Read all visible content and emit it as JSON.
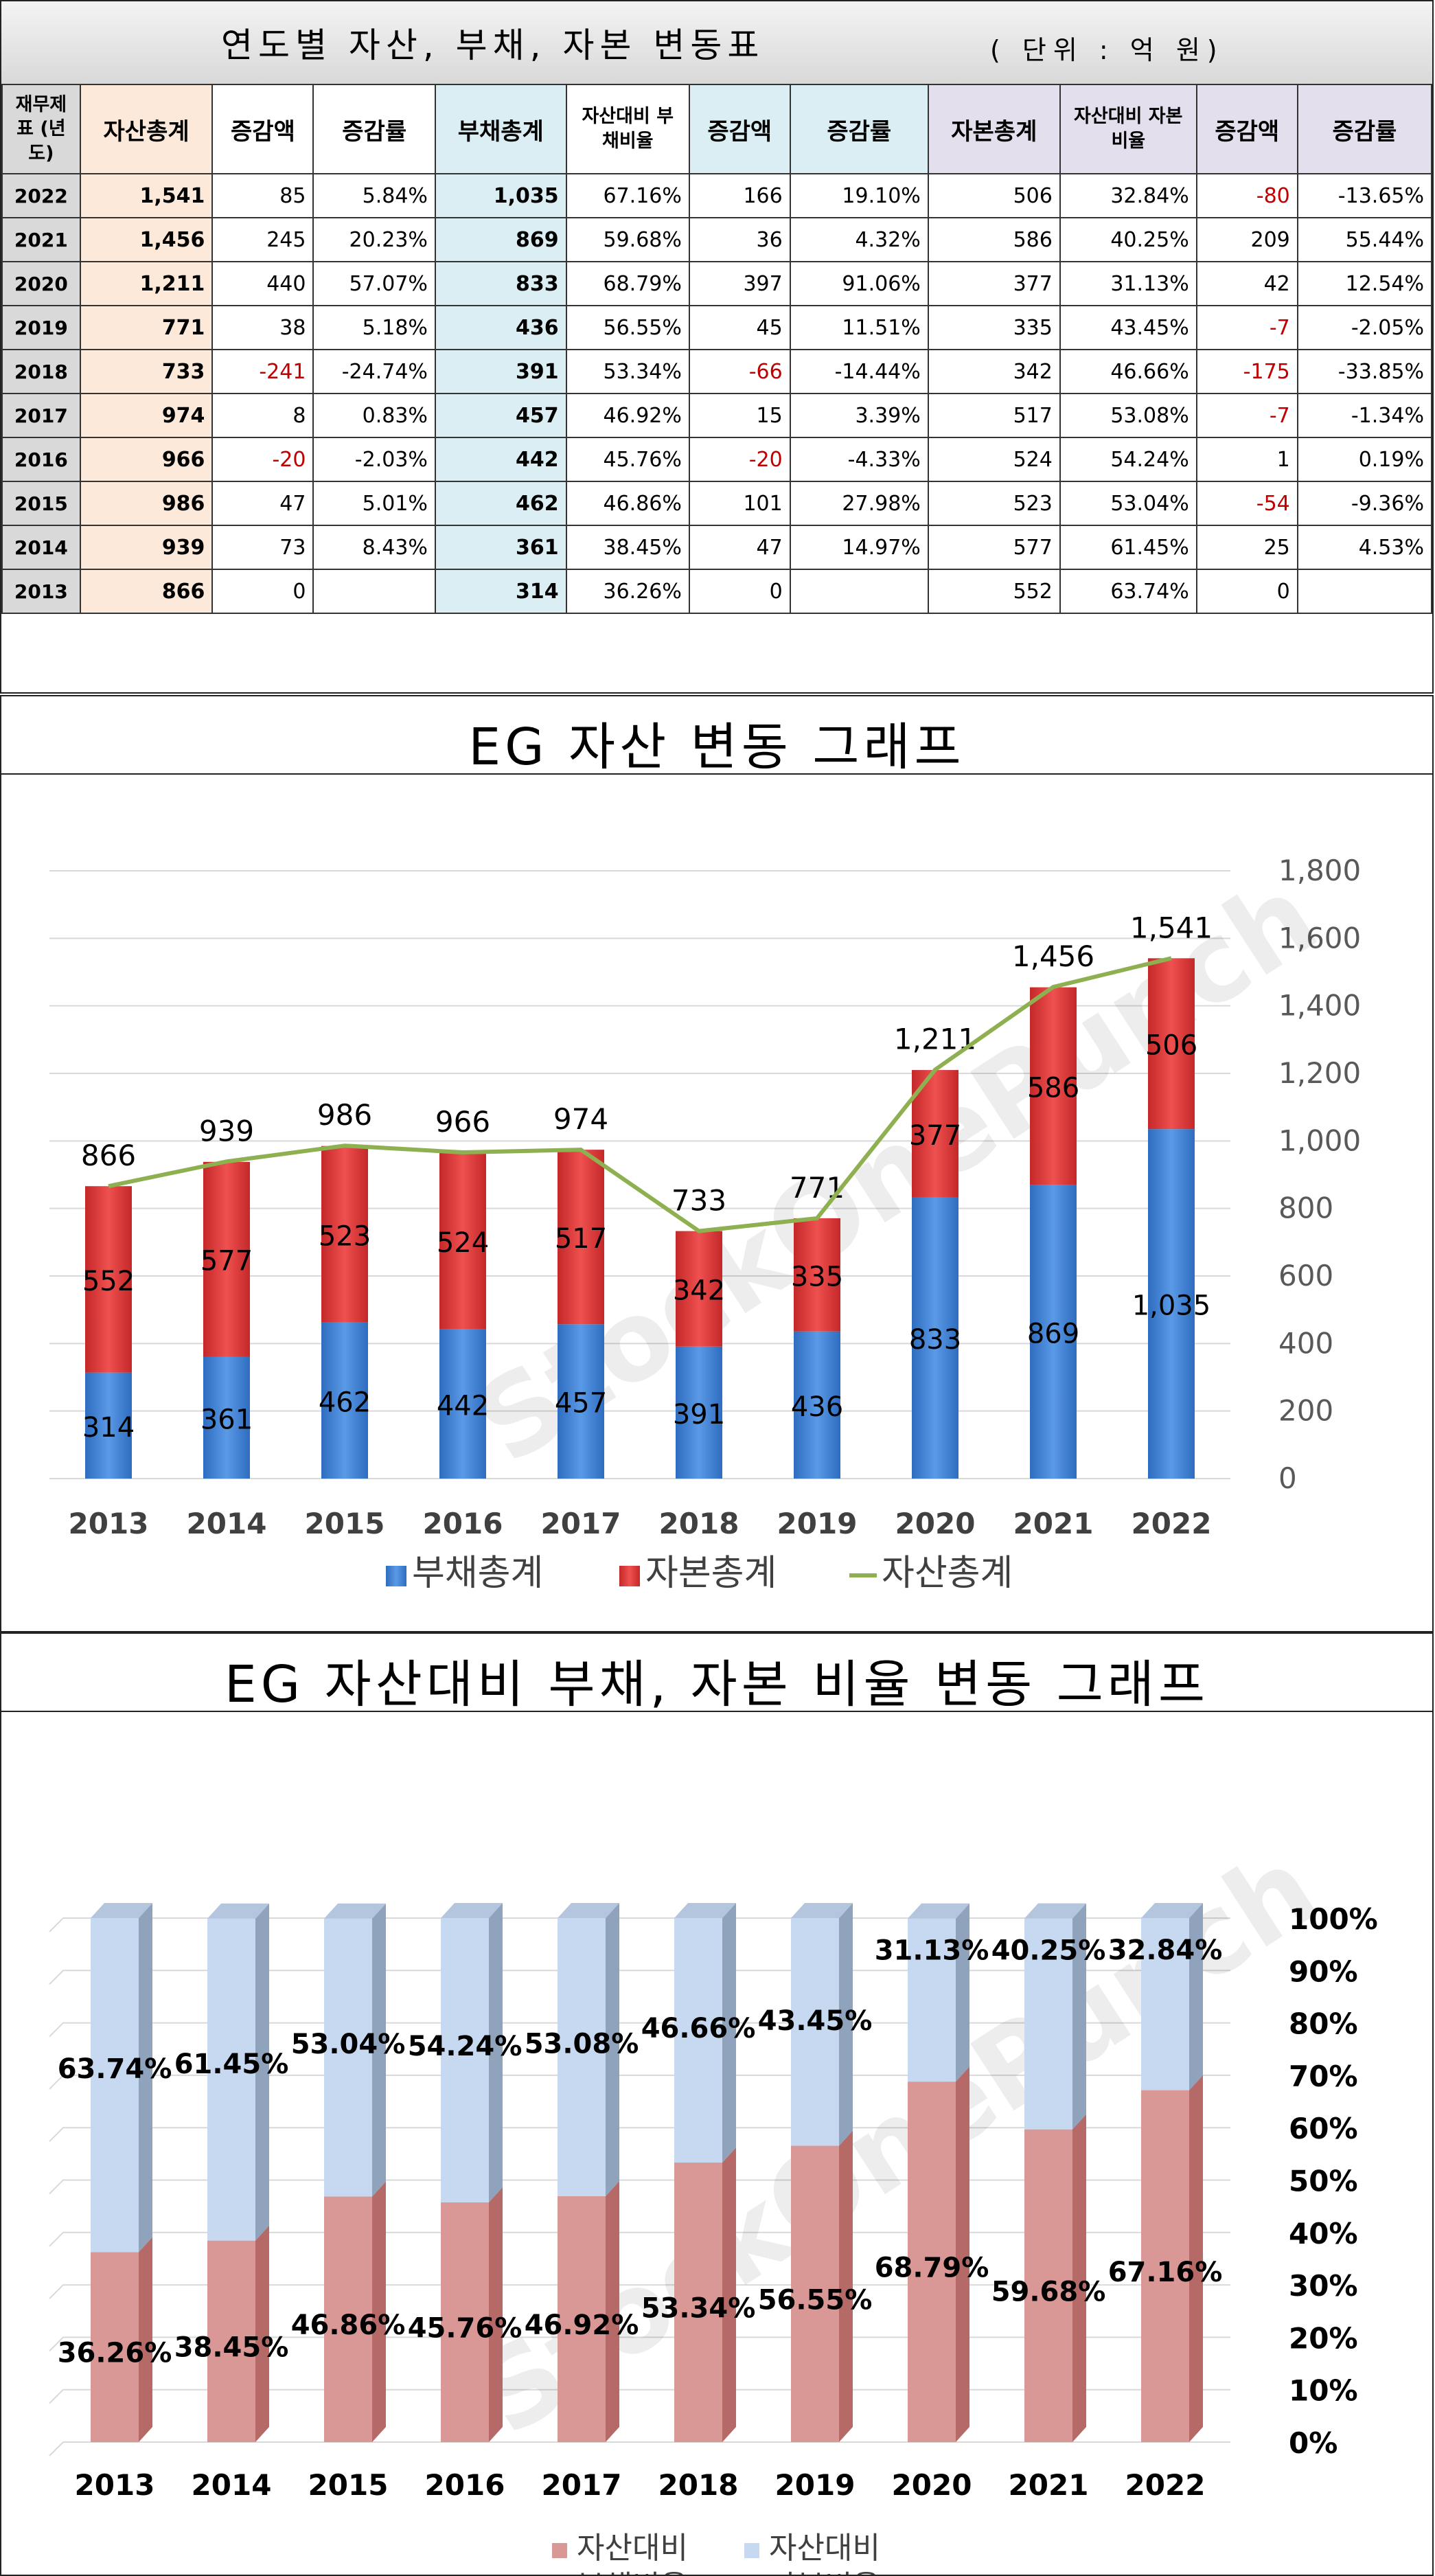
{
  "table": {
    "title": "연도별 자산, 부채, 자본 변동표",
    "unit": "( 단위 : 억 원)",
    "headers": {
      "corner": "재무제표 (년도)",
      "asset_total": "자산총계",
      "asset_change": "증감액",
      "asset_rate": "증감률",
      "debt_total": "부채총계",
      "debt_ratio": "자산대비 부채비율",
      "debt_change": "증감액",
      "debt_rate": "증감률",
      "cap_total": "자본총계",
      "cap_ratio": "자산대비 자본비율",
      "cap_change": "증감액",
      "cap_rate": "증감률"
    },
    "rows": [
      {
        "year": "2022",
        "asset": "1,541",
        "asset_chg": "85",
        "asset_rate": "5.84%",
        "debt": "1,035",
        "debt_ratio": "67.16%",
        "debt_chg": "166",
        "debt_rate": "19.10%",
        "cap": "506",
        "cap_ratio": "32.84%",
        "cap_chg": "-80",
        "cap_rate": "-13.65%"
      },
      {
        "year": "2021",
        "asset": "1,456",
        "asset_chg": "245",
        "asset_rate": "20.23%",
        "debt": "869",
        "debt_ratio": "59.68%",
        "debt_chg": "36",
        "debt_rate": "4.32%",
        "cap": "586",
        "cap_ratio": "40.25%",
        "cap_chg": "209",
        "cap_rate": "55.44%"
      },
      {
        "year": "2020",
        "asset": "1,211",
        "asset_chg": "440",
        "asset_rate": "57.07%",
        "debt": "833",
        "debt_ratio": "68.79%",
        "debt_chg": "397",
        "debt_rate": "91.06%",
        "cap": "377",
        "cap_ratio": "31.13%",
        "cap_chg": "42",
        "cap_rate": "12.54%"
      },
      {
        "year": "2019",
        "asset": "771",
        "asset_chg": "38",
        "asset_rate": "5.18%",
        "debt": "436",
        "debt_ratio": "56.55%",
        "debt_chg": "45",
        "debt_rate": "11.51%",
        "cap": "335",
        "cap_ratio": "43.45%",
        "cap_chg": "-7",
        "cap_rate": "-2.05%"
      },
      {
        "year": "2018",
        "asset": "733",
        "asset_chg": "-241",
        "asset_rate": "-24.74%",
        "debt": "391",
        "debt_ratio": "53.34%",
        "debt_chg": "-66",
        "debt_rate": "-14.44%",
        "cap": "342",
        "cap_ratio": "46.66%",
        "cap_chg": "-175",
        "cap_rate": "-33.85%"
      },
      {
        "year": "2017",
        "asset": "974",
        "asset_chg": "8",
        "asset_rate": "0.83%",
        "debt": "457",
        "debt_ratio": "46.92%",
        "debt_chg": "15",
        "debt_rate": "3.39%",
        "cap": "517",
        "cap_ratio": "53.08%",
        "cap_chg": "-7",
        "cap_rate": "-1.34%"
      },
      {
        "year": "2016",
        "asset": "966",
        "asset_chg": "-20",
        "asset_rate": "-2.03%",
        "debt": "442",
        "debt_ratio": "45.76%",
        "debt_chg": "-20",
        "debt_rate": "-4.33%",
        "cap": "524",
        "cap_ratio": "54.24%",
        "cap_chg": "1",
        "cap_rate": "0.19%"
      },
      {
        "year": "2015",
        "asset": "986",
        "asset_chg": "47",
        "asset_rate": "5.01%",
        "debt": "462",
        "debt_ratio": "46.86%",
        "debt_chg": "101",
        "debt_rate": "27.98%",
        "cap": "523",
        "cap_ratio": "53.04%",
        "cap_chg": "-54",
        "cap_rate": "-9.36%"
      },
      {
        "year": "2014",
        "asset": "939",
        "asset_chg": "73",
        "asset_rate": "8.43%",
        "debt": "361",
        "debt_ratio": "38.45%",
        "debt_chg": "47",
        "debt_rate": "14.97%",
        "cap": "577",
        "cap_ratio": "61.45%",
        "cap_chg": "25",
        "cap_rate": "4.53%"
      },
      {
        "year": "2013",
        "asset": "866",
        "asset_chg": "0",
        "asset_rate": "",
        "debt": "314",
        "debt_ratio": "36.26%",
        "debt_chg": "0",
        "debt_rate": "",
        "cap": "552",
        "cap_ratio": "63.74%",
        "cap_chg": "0",
        "cap_rate": ""
      }
    ]
  },
  "colors": {
    "debt_blue": "#4a8ad6",
    "capital_red": "#e03a3a",
    "asset_line": "#8fb050",
    "ratio_debt": "#d99795",
    "ratio_capital": "#c6d9f0",
    "negative_text": "#c00000"
  },
  "watermark": "StockOnePunch",
  "chart_data": [
    {
      "type": "bar",
      "stacked": true,
      "title": "EG 자산 변동 그래프",
      "categories": [
        "2013",
        "2014",
        "2015",
        "2016",
        "2017",
        "2018",
        "2019",
        "2020",
        "2021",
        "2022"
      ],
      "series": [
        {
          "name": "부채총계",
          "kind": "bar",
          "values": [
            314,
            361,
            462,
            442,
            457,
            391,
            436,
            833,
            869,
            1035
          ],
          "labels": [
            "314",
            "361",
            "462",
            "442",
            "457",
            "391",
            "436",
            "833",
            "869",
            "1,035"
          ]
        },
        {
          "name": "자본총계",
          "kind": "bar",
          "values": [
            552,
            577,
            523,
            524,
            517,
            342,
            335,
            377,
            586,
            506
          ],
          "labels": [
            "552",
            "577",
            "523",
            "524",
            "517",
            "342",
            "335",
            "377",
            "586",
            "506"
          ]
        },
        {
          "name": "자산총계",
          "kind": "line",
          "values": [
            866,
            939,
            986,
            966,
            974,
            733,
            771,
            1211,
            1456,
            1541
          ],
          "labels": [
            "866",
            "939",
            "986",
            "966",
            "974",
            "733",
            "771",
            "1,211",
            "1,456",
            "1,541"
          ]
        }
      ],
      "y_ticks": [
        "0",
        "200",
        "400",
        "600",
        "800",
        "1,000",
        "1,200",
        "1,400",
        "1,600",
        "1,800"
      ],
      "ylim": [
        0,
        1800
      ],
      "y_axis_side": "right",
      "grid": true,
      "legend": "bottom"
    },
    {
      "type": "bar",
      "stacked": true,
      "percent": true,
      "title": "EG 자산대비 부채, 자본 비율 변동 그래프",
      "categories": [
        "2013",
        "2014",
        "2015",
        "2016",
        "2017",
        "2018",
        "2019",
        "2020",
        "2021",
        "2022"
      ],
      "series": [
        {
          "name": "자산대비 부채비율",
          "values": [
            36.26,
            38.45,
            46.86,
            45.76,
            46.92,
            53.34,
            56.55,
            68.79,
            59.68,
            67.16
          ],
          "labels": [
            "36.26%",
            "38.45%",
            "46.86%",
            "45.76%",
            "46.92%",
            "53.34%",
            "56.55%",
            "68.79%",
            "59.68%",
            "67.16%"
          ]
        },
        {
          "name": "자산대비 자본비율",
          "values": [
            63.74,
            61.45,
            53.04,
            54.24,
            53.08,
            46.66,
            43.45,
            31.13,
            40.25,
            32.84
          ],
          "labels": [
            "63.74%",
            "61.45%",
            "53.04%",
            "54.24%",
            "53.08%",
            "46.66%",
            "43.45%",
            "31.13%",
            "40.25%",
            "32.84%"
          ]
        }
      ],
      "y_ticks": [
        "0%",
        "10%",
        "20%",
        "30%",
        "40%",
        "50%",
        "60%",
        "70%",
        "80%",
        "90%",
        "100%"
      ],
      "ylim": [
        0,
        100
      ],
      "y_axis_side": "right",
      "grid": true,
      "legend": "bottom"
    }
  ]
}
